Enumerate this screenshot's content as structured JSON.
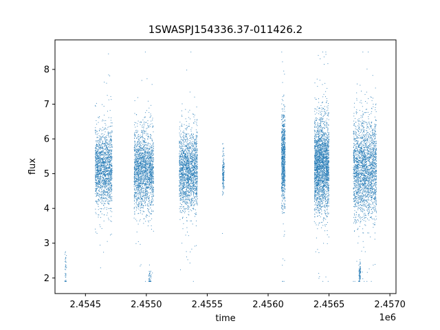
{
  "chart_data": {
    "type": "scatter",
    "title": "1SWASPJ154336.37-011426.2",
    "xlabel": "time",
    "ylabel": "flux",
    "x_offset_label": "1e6",
    "xlim": [
      2454250,
      2457050
    ],
    "ylim": [
      1.55,
      8.85
    ],
    "x_ticks": [
      2454500,
      2455000,
      2455500,
      2456000,
      2456500,
      2457000
    ],
    "x_tick_labels": [
      "2.4545",
      "2.4550",
      "2.4555",
      "2.4560",
      "2.4565",
      "2.4570"
    ],
    "y_ticks": [
      2,
      3,
      4,
      5,
      6,
      7,
      8
    ],
    "y_tick_labels": [
      "2",
      "3",
      "4",
      "5",
      "6",
      "7",
      "8"
    ],
    "grid": false,
    "marker_color": "#1f77b4",
    "clusters": [
      {
        "x_start": 2454330,
        "x_end": 2454345,
        "y_center": 2.3,
        "y_spread": 0.35,
        "count": 40
      },
      {
        "x_start": 2454580,
        "x_end": 2454720,
        "y_center": 5.15,
        "y_spread": 0.55,
        "count": 1600
      },
      {
        "x_start": 2454900,
        "x_end": 2455060,
        "y_center": 5.1,
        "y_spread": 0.55,
        "count": 1900
      },
      {
        "x_start": 2455020,
        "x_end": 2455040,
        "y_center": 2.0,
        "y_spread": 0.15,
        "count": 40
      },
      {
        "x_start": 2455270,
        "x_end": 2455420,
        "y_center": 5.1,
        "y_spread": 0.55,
        "count": 1800
      },
      {
        "x_start": 2455625,
        "x_end": 2455640,
        "y_center": 5.05,
        "y_spread": 0.3,
        "count": 150
      },
      {
        "x_start": 2456110,
        "x_end": 2456140,
        "y_center": 5.4,
        "y_spread": 0.65,
        "count": 800
      },
      {
        "x_start": 2456380,
        "x_end": 2456500,
        "y_center": 5.25,
        "y_spread": 0.65,
        "count": 2400
      },
      {
        "x_start": 2456700,
        "x_end": 2456890,
        "y_center": 5.15,
        "y_spread": 0.7,
        "count": 2300
      },
      {
        "x_start": 2456745,
        "x_end": 2456760,
        "y_center": 2.1,
        "y_spread": 0.15,
        "count": 80
      }
    ]
  }
}
